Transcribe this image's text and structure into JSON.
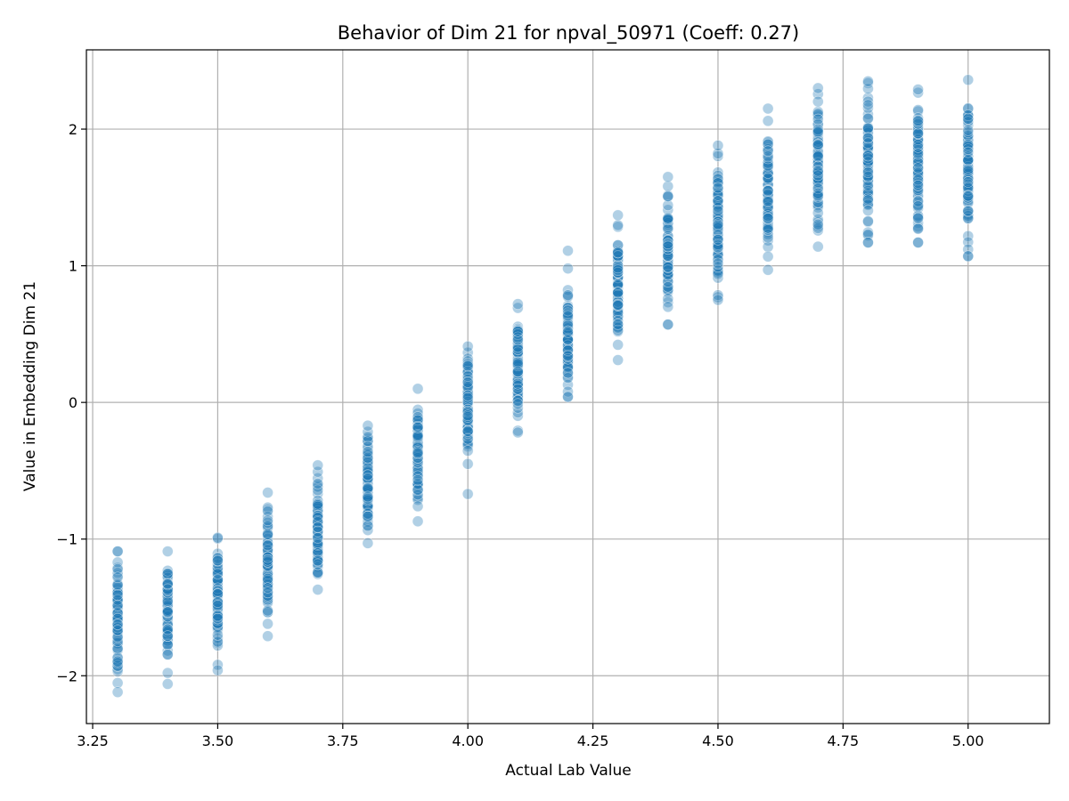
{
  "chart_data": {
    "type": "scatter",
    "title": "Behavior of Dim 21 for npval_50971 (Coeff: 0.27)",
    "xlabel": "Actual Lab Value",
    "ylabel": "Value in Embedding Dim 21",
    "xlim": [
      3.2375,
      5.1625
    ],
    "ylim": [
      -2.35,
      2.58
    ],
    "xticks": [
      "3.25",
      "3.50",
      "3.75",
      "4.00",
      "4.25",
      "4.50",
      "4.75",
      "5.00"
    ],
    "xtick_values": [
      3.25,
      3.5,
      3.75,
      4.0,
      4.25,
      4.5,
      4.75,
      5.0
    ],
    "yticks": [
      "−2",
      "−1",
      "0",
      "1",
      "2"
    ],
    "ytick_values": [
      -2,
      -1,
      0,
      1,
      2
    ],
    "grid": true,
    "point_color": "#1f77b4",
    "point_opacity": 0.35,
    "groups": [
      {
        "x": 3.3,
        "min": -2.12,
        "max": -1.09,
        "outliers": [
          -1.09,
          -1.17,
          -1.22,
          -1.28
        ]
      },
      {
        "x": 3.4,
        "min": -1.98,
        "max": -1.09,
        "outliers": [
          -2.06
        ]
      },
      {
        "x": 3.5,
        "min": -1.92,
        "max": -0.99,
        "outliers": [
          -1.96
        ]
      },
      {
        "x": 3.6,
        "min": -1.62,
        "max": -0.66,
        "outliers": [
          -1.71
        ]
      },
      {
        "x": 3.7,
        "min": -1.37,
        "max": -0.46,
        "outliers": []
      },
      {
        "x": 3.8,
        "min": -1.03,
        "max": -0.17,
        "outliers": []
      },
      {
        "x": 3.9,
        "min": -0.76,
        "max": 0.1,
        "outliers": [
          -0.87
        ]
      },
      {
        "x": 4.0,
        "min": -0.45,
        "max": 0.41,
        "outliers": [
          -0.67
        ]
      },
      {
        "x": 4.1,
        "min": -0.22,
        "max": 0.72,
        "outliers": []
      },
      {
        "x": 4.2,
        "min": 0.04,
        "max": 0.98,
        "outliers": [
          1.11
        ]
      },
      {
        "x": 4.3,
        "min": 0.31,
        "max": 1.37,
        "outliers": []
      },
      {
        "x": 4.4,
        "min": 0.57,
        "max": 1.65,
        "outliers": []
      },
      {
        "x": 4.5,
        "min": 0.75,
        "max": 1.88,
        "outliers": []
      },
      {
        "x": 4.6,
        "min": 0.97,
        "max": 2.06,
        "outliers": [
          2.15
        ]
      },
      {
        "x": 4.7,
        "min": 1.14,
        "max": 2.3,
        "outliers": []
      },
      {
        "x": 4.8,
        "min": 1.17,
        "max": 2.35,
        "outliers": [
          1.17
        ]
      },
      {
        "x": 4.9,
        "min": 1.17,
        "max": 2.29,
        "outliers": [
          1.27,
          1.17
        ]
      },
      {
        "x": 5.0,
        "min": 1.07,
        "max": 2.36,
        "outliers": [
          1.12,
          1.07
        ]
      }
    ]
  }
}
